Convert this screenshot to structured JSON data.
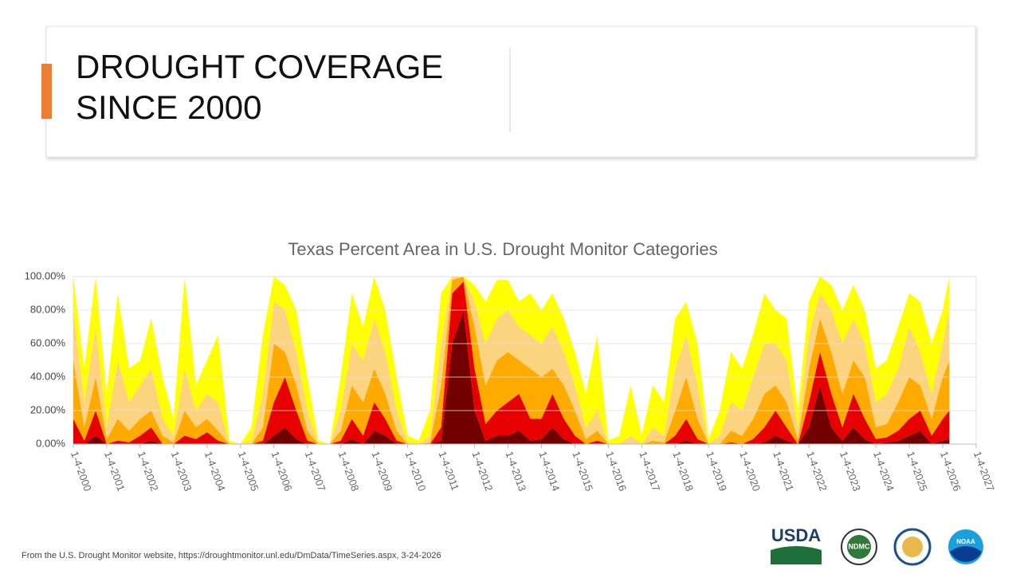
{
  "header": {
    "title": [
      "DROUGHT COVERAGE",
      "SINCE 2000"
    ]
  },
  "chart_data": {
    "type": "stacked-area",
    "title": "Texas Percent Area in U.S. Drought Monitor Categories",
    "x": [
      2000,
      2000.33,
      2000.67,
      2001,
      2001.33,
      2001.67,
      2002,
      2002.33,
      2002.67,
      2003,
      2003.33,
      2003.67,
      2004,
      2004.33,
      2004.67,
      2005,
      2005.33,
      2005.67,
      2006,
      2006.33,
      2006.67,
      2007,
      2007.33,
      2007.67,
      2008,
      2008.33,
      2008.67,
      2009,
      2009.33,
      2009.67,
      2010,
      2010.33,
      2010.67,
      2011,
      2011.33,
      2011.67,
      2012,
      2012.33,
      2012.67,
      2013,
      2013.33,
      2013.67,
      2014,
      2014.33,
      2014.67,
      2015,
      2015.33,
      2015.67,
      2016,
      2016.33,
      2016.67,
      2017,
      2017.33,
      2017.67,
      2018,
      2018.33,
      2018.67,
      2019,
      2019.33,
      2019.67,
      2020,
      2020.33,
      2020.67,
      2021,
      2021.33,
      2021.67,
      2022,
      2022.33,
      2022.67,
      2023,
      2023.33,
      2023.67,
      2024,
      2024.33,
      2024.67,
      2025,
      2025.33,
      2025.67,
      2026,
      2026.2
    ],
    "series": [
      {
        "color": "#730000",
        "values": [
          0,
          0,
          5,
          0,
          0,
          0,
          0,
          2,
          0,
          0,
          0,
          0,
          0,
          0,
          0,
          0,
          0,
          0,
          5,
          10,
          3,
          0,
          0,
          0,
          0,
          3,
          0,
          8,
          5,
          0,
          0,
          0,
          0,
          2,
          60,
          80,
          20,
          2,
          5,
          5,
          8,
          2,
          3,
          10,
          3,
          0,
          0,
          0,
          0,
          0,
          0,
          0,
          0,
          0,
          0,
          2,
          0,
          0,
          0,
          0,
          0,
          0,
          1,
          5,
          2,
          0,
          10,
          35,
          10,
          2,
          10,
          3,
          0,
          1,
          2,
          5,
          8,
          0,
          2,
          3
        ]
      },
      {
        "color": "#e60000",
        "values": [
          15,
          2,
          15,
          0,
          2,
          1,
          5,
          8,
          0,
          0,
          5,
          3,
          7,
          2,
          0,
          0,
          0,
          2,
          20,
          30,
          17,
          2,
          0,
          0,
          2,
          12,
          5,
          17,
          10,
          2,
          0,
          0,
          0,
          8,
          30,
          17,
          25,
          10,
          15,
          20,
          22,
          13,
          12,
          20,
          12,
          5,
          0,
          2,
          0,
          0,
          0,
          0,
          0,
          0,
          5,
          13,
          3,
          0,
          0,
          1,
          0,
          3,
          9,
          15,
          8,
          0,
          15,
          20,
          20,
          8,
          20,
          12,
          3,
          3,
          6,
          10,
          12,
          5,
          13,
          17
        ]
      },
      {
        "color": "#ffaa00",
        "values": [
          35,
          8,
          20,
          3,
          13,
          7,
          10,
          10,
          5,
          1,
          15,
          7,
          8,
          6,
          0,
          0,
          0,
          8,
          35,
          15,
          15,
          6,
          0,
          0,
          6,
          20,
          20,
          20,
          15,
          6,
          0,
          0,
          1,
          25,
          8,
          3,
          25,
          23,
          30,
          30,
          20,
          30,
          25,
          15,
          20,
          15,
          3,
          6,
          0,
          0,
          0,
          0,
          2,
          1,
          15,
          25,
          12,
          0,
          0,
          7,
          5,
          12,
          20,
          15,
          15,
          3,
          20,
          20,
          25,
          20,
          20,
          25,
          7,
          8,
          17,
          25,
          15,
          10,
          25,
          30
        ]
      },
      {
        "color": "#fcd37f",
        "values": [
          30,
          15,
          30,
          7,
          35,
          17,
          20,
          25,
          10,
          4,
          25,
          10,
          15,
          17,
          0,
          0,
          2,
          20,
          25,
          25,
          20,
          12,
          0,
          0,
          12,
          25,
          25,
          30,
          25,
          12,
          1,
          0,
          4,
          25,
          2,
          0,
          15,
          25,
          25,
          25,
          20,
          20,
          20,
          25,
          20,
          15,
          7,
          12,
          0,
          0,
          5,
          0,
          8,
          4,
          25,
          25,
          20,
          0,
          5,
          17,
          15,
          25,
          30,
          25,
          25,
          7,
          20,
          15,
          25,
          30,
          25,
          20,
          15,
          18,
          20,
          30,
          20,
          15,
          20,
          30
        ]
      },
      {
        "color": "#ffff00",
        "values": [
          20,
          20,
          30,
          20,
          40,
          20,
          15,
          30,
          25,
          10,
          55,
          15,
          20,
          40,
          2,
          0,
          8,
          35,
          15,
          15,
          25,
          20,
          2,
          0,
          20,
          30,
          20,
          25,
          25,
          20,
          4,
          2,
          15,
          30,
          0,
          0,
          10,
          25,
          23,
          18,
          15,
          25,
          20,
          20,
          20,
          20,
          20,
          45,
          2,
          5,
          30,
          5,
          25,
          20,
          30,
          20,
          25,
          3,
          15,
          30,
          25,
          25,
          30,
          20,
          25,
          10,
          20,
          10,
          15,
          20,
          20,
          20,
          20,
          20,
          25,
          20,
          30,
          30,
          20,
          20
        ]
      }
    ],
    "xlim": [
      2000,
      2027
    ],
    "xticks": [
      {
        "value": 2000,
        "label": "1-4-2000"
      },
      {
        "value": 2001,
        "label": "1-4-2001"
      },
      {
        "value": 2002,
        "label": "1-4-2002"
      },
      {
        "value": 2003,
        "label": "1-4-2003"
      },
      {
        "value": 2004,
        "label": "1-4-2004"
      },
      {
        "value": 2005,
        "label": "1-4-2005"
      },
      {
        "value": 2006,
        "label": "1-4-2006"
      },
      {
        "value": 2007,
        "label": "1-4-2007"
      },
      {
        "value": 2008,
        "label": "1-4-2008"
      },
      {
        "value": 2009,
        "label": "1-4-2009"
      },
      {
        "value": 2010,
        "label": "1-4-2010"
      },
      {
        "value": 2011,
        "label": "1-4-2011"
      },
      {
        "value": 2012,
        "label": "1-4-2012"
      },
      {
        "value": 2013,
        "label": "1-4-2013"
      },
      {
        "value": 2014,
        "label": "1-4-2014"
      },
      {
        "value": 2015,
        "label": "1-4-2015"
      },
      {
        "value": 2016,
        "label": "1-4-2016"
      },
      {
        "value": 2017,
        "label": "1-4-2017"
      },
      {
        "value": 2018,
        "label": "1-4-2018"
      },
      {
        "value": 2019,
        "label": "1-4-2019"
      },
      {
        "value": 2020,
        "label": "1-4-2020"
      },
      {
        "value": 2021,
        "label": "1-4-2021"
      },
      {
        "value": 2022,
        "label": "1-4-2022"
      },
      {
        "value": 2023,
        "label": "1-4-2023"
      },
      {
        "value": 2024,
        "label": "1-4-2024"
      },
      {
        "value": 2025,
        "label": "1-4-2025"
      },
      {
        "value": 2026,
        "label": "1-4-2026"
      },
      {
        "value": 2027,
        "label": "1-4-2027"
      }
    ],
    "ylim": [
      0,
      100
    ],
    "yticks": [
      {
        "value": 0,
        "label": "0.00%"
      },
      {
        "value": 20,
        "label": "20.00%"
      },
      {
        "value": 40,
        "label": "40.00%"
      },
      {
        "value": 60,
        "label": "60.00%"
      },
      {
        "value": 80,
        "label": "80.00%"
      },
      {
        "value": 100,
        "label": "100.00%"
      }
    ],
    "grid": true
  },
  "footer": {
    "source": "From the U.S. Drought Monitor website, https://droughtmonitor.unl.edu/DmData/TimeSeries.aspx, 3-24-2026"
  },
  "logos": [
    "USDA",
    "NDMC",
    "NOAA"
  ]
}
